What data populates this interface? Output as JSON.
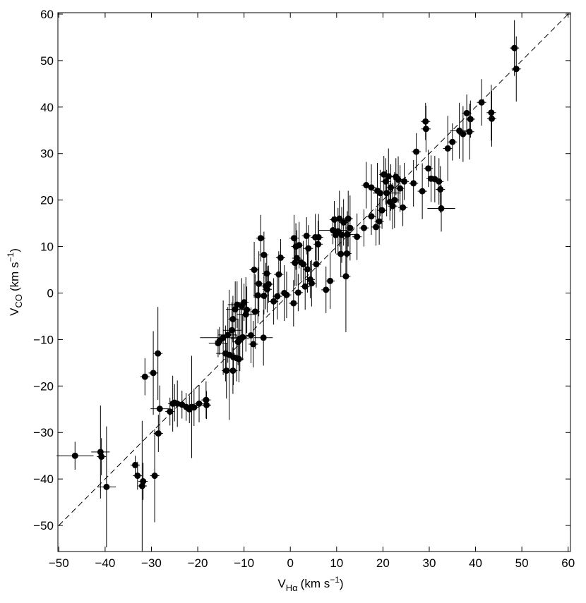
{
  "chart_data": {
    "type": "scatter",
    "xlabel": {
      "main": "V",
      "sub": "Hα",
      "unit": "(km s",
      "sup": "−1",
      "close": ")"
    },
    "ylabel": {
      "main": "V",
      "sub": "CO",
      "unit": "(km s",
      "sup": "−1",
      "close": ")"
    },
    "color": "#000000",
    "reference_line": {
      "x": [
        -50,
        60
      ],
      "y": [
        -50,
        60
      ],
      "style": "dashed"
    },
    "xlim": [
      -50.2,
      60.5
    ],
    "ylim": [
      -55.6,
      60.3
    ],
    "xticks": [
      {
        "value": -50,
        "label": "−50"
      },
      {
        "value": -40,
        "label": "−40"
      },
      {
        "value": -30,
        "label": "−30"
      },
      {
        "value": -20,
        "label": "−20"
      },
      {
        "value": -10,
        "label": "−10"
      },
      0,
      10,
      20,
      30,
      40,
      50,
      60
    ],
    "yticks": [
      {
        "value": -50,
        "label": "−50"
      },
      {
        "value": -40,
        "label": "−40"
      },
      {
        "value": -30,
        "label": "−30"
      },
      {
        "value": -20,
        "label": "−20"
      },
      {
        "value": -10,
        "label": "−10"
      },
      0,
      10,
      20,
      30,
      40,
      50,
      60
    ],
    "x": [
      -46.5,
      -41,
      -40.8,
      -39.7,
      -33.5,
      -33,
      -32,
      -31.8,
      -31.4,
      -29.6,
      -29.3,
      -28.6,
      -28.5,
      -28.2,
      -26,
      -25.4,
      -25,
      -24.4,
      -23.4,
      -22.5,
      -21.8,
      -21.3,
      -20.8,
      -19.7,
      -18.2,
      -18.1,
      -15.6,
      -15.3,
      -14.5,
      -14,
      -13.8,
      -13.5,
      -13.2,
      -12.6,
      -12.4,
      -12.4,
      -12.3,
      -11.9,
      -11.6,
      -11.5,
      -11.3,
      -11.1,
      -10.9,
      -10.5,
      -10.3,
      -10,
      -9.6,
      -9.4,
      -8.5,
      -8,
      -7.8,
      -7.6,
      -7,
      -6.8,
      -6.4,
      -5.7,
      -5.8,
      -5.7,
      -5.3,
      -5.1,
      -5,
      -4.7,
      -3.6,
      -2.8,
      -2.5,
      -2.1,
      -1.3,
      -0.8,
      0.7,
      0.8,
      1,
      1.2,
      1.4,
      1.7,
      1.9,
      2.3,
      2.8,
      3.2,
      3.5,
      3.7,
      3.9,
      4.3,
      4.6,
      5.4,
      5.6,
      6,
      6.1,
      7.7,
      8.6,
      9.2,
      9.5,
      9.8,
      10.3,
      10.6,
      10.9,
      11.1,
      11.5,
      12,
      12.2,
      12.3,
      12.5,
      12.9,
      14.4,
      15.9,
      16.4,
      17.5,
      17.5,
      18.5,
      18.8,
      19.2,
      19.4,
      19.8,
      20.2,
      20.6,
      20.8,
      21.2,
      21.5,
      21.7,
      22.1,
      22.5,
      22.8,
      23.3,
      23.7,
      24.3,
      24.6,
      26.6,
      27.2,
      28.5,
      29.2,
      29.3,
      29.8,
      30.4,
      31.2,
      32.1,
      32.4,
      32.6,
      34,
      35,
      36.5,
      37.3,
      38.1,
      38.7,
      38.9,
      41.3,
      43.4,
      43.5,
      48.4,
      48.8
    ],
    "values": [
      -35,
      -34.2,
      -35.2,
      -41.7,
      -37,
      -39.3,
      -41.5,
      -40.5,
      -18,
      -17.2,
      -39.3,
      -13,
      -30.2,
      -24.9,
      -25.5,
      -23.8,
      -23.6,
      -23.8,
      -24,
      -24.5,
      -25,
      -24.5,
      -24.6,
      -23.8,
      -23,
      -24.1,
      -10.8,
      -10.3,
      -9.6,
      -13,
      -16.7,
      -9,
      -13.3,
      -8,
      -5.6,
      -16.7,
      -13.8,
      -3.5,
      -14,
      -2.5,
      -10.5,
      -14.2,
      -9.8,
      -2.8,
      -9.5,
      -2,
      -4.6,
      -3.6,
      -9.1,
      -11,
      5,
      -4,
      -0.5,
      2,
      11.8,
      -0.6,
      -9.6,
      8.2,
      1.5,
      4.2,
      0.8,
      1.9,
      -1.8,
      -0.7,
      4,
      7.6,
      0,
      -0.4,
      -2.2,
      11.8,
      6.5,
      10,
      7.5,
      0.1,
      10.3,
      6.6,
      6.2,
      1.4,
      12.3,
      5.1,
      9.6,
      2.9,
      2.1,
      12,
      6.2,
      10.5,
      12,
      0.7,
      2.6,
      13.5,
      15.8,
      12.5,
      13.3,
      16,
      8.4,
      12.5,
      15.2,
      3.6,
      8.5,
      12.6,
      16,
      14,
      12.1,
      14,
      23.2,
      22.7,
      16.5,
      14.2,
      22,
      15.4,
      21.5,
      17.8,
      25.5,
      24,
      21.5,
      25.1,
      19.6,
      22.7,
      18.7,
      20,
      25,
      24.4,
      22.5,
      18.4,
      24,
      23.6,
      30.4,
      21.9,
      36.9,
      35.3,
      26.8,
      24.6,
      24.5,
      24,
      22.3,
      18.2,
      31.1,
      32.5,
      34.9,
      34.2,
      38.7,
      34.7,
      37.4,
      41,
      38.8,
      37.5,
      52.7,
      48.2
    ],
    "xerr": [
      4,
      2,
      1,
      2,
      1,
      1,
      1,
      1,
      1,
      1,
      1,
      1,
      1,
      2,
      1,
      1,
      1,
      1,
      1,
      1,
      1,
      1,
      1,
      1,
      1,
      1,
      2,
      1,
      5,
      2,
      1,
      2,
      1,
      2,
      1,
      1,
      1,
      2,
      1,
      2,
      1,
      1,
      2,
      1,
      1,
      1,
      2,
      1,
      1,
      1,
      1,
      1,
      1,
      1,
      1,
      1,
      2,
      1,
      1,
      1,
      1,
      1,
      1,
      1,
      1,
      1,
      1,
      1,
      1,
      1,
      1,
      1,
      1,
      1,
      1,
      1,
      1,
      1,
      1,
      1,
      1,
      1,
      1,
      1,
      1,
      1,
      1,
      1,
      1,
      3,
      1,
      1,
      1,
      1,
      1,
      2,
      1,
      1,
      1,
      2,
      1,
      1,
      1,
      1,
      1,
      1,
      1,
      1,
      1,
      1,
      1,
      1,
      1,
      1,
      3,
      1,
      1,
      1,
      1,
      1,
      1,
      1,
      1,
      1,
      1,
      1,
      1,
      1,
      1,
      1,
      1,
      1,
      1,
      1,
      1,
      3,
      1,
      1,
      2,
      1,
      1,
      1,
      1,
      1,
      1,
      1,
      1,
      1
    ],
    "yerr": [
      3,
      10,
      4,
      13,
      2,
      3,
      14,
      4,
      4,
      9,
      10,
      10,
      4,
      5,
      3,
      6,
      4,
      5,
      3,
      3,
      3,
      11,
      4,
      4,
      4,
      3,
      3,
      3,
      8,
      6,
      6,
      6,
      14,
      6,
      5,
      5,
      6,
      6,
      5,
      5,
      5,
      5,
      7,
      6,
      5,
      4,
      8,
      5,
      6,
      5,
      6,
      8,
      6,
      7,
      5,
      4,
      6,
      5,
      5,
      4,
      5,
      4,
      5,
      5,
      5,
      4,
      6,
      5,
      5,
      5,
      5,
      5,
      6,
      4,
      5,
      4,
      5,
      5,
      4,
      5,
      5,
      4,
      5,
      5,
      5,
      5,
      5,
      5,
      6,
      3,
      4,
      4,
      5,
      6,
      5,
      6,
      5,
      12,
      5,
      5,
      6,
      7,
      5,
      4,
      5,
      5,
      4,
      4,
      6,
      5,
      5,
      4,
      4,
      5,
      5,
      6,
      4,
      5,
      5,
      6,
      4,
      5,
      5,
      4,
      4,
      5,
      4,
      6,
      4,
      5,
      4,
      5,
      5,
      5,
      5,
      5,
      7,
      4,
      6,
      6,
      4,
      6,
      4,
      5,
      6,
      6,
      6,
      7
    ]
  }
}
